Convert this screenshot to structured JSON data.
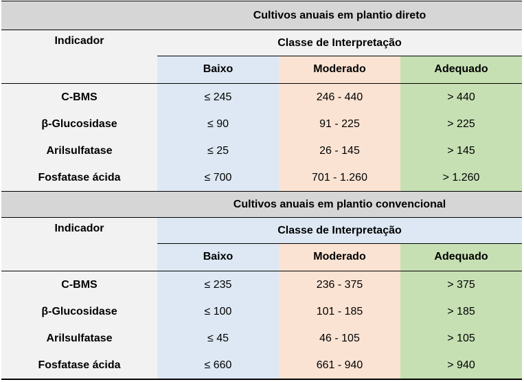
{
  "sections": [
    {
      "title": "Cultivos anuais em plantio direto",
      "indicator_header": "Indicador",
      "class_header": "Classe de Interpretação",
      "levels": [
        "Baixo",
        "Moderado",
        "Adequado"
      ],
      "rows": [
        {
          "indicator": "C-BMS",
          "values": [
            "≤ 245",
            "246 - 440",
            "> 440"
          ]
        },
        {
          "indicator": "β-Glucosidase",
          "values": [
            "≤ 90",
            "91 - 225",
            "> 225"
          ]
        },
        {
          "indicator": "Arilsulfatase",
          "values": [
            "≤ 25",
            "26 - 145",
            "> 145"
          ]
        },
        {
          "indicator": "Fosfatase ácida",
          "values": [
            "≤ 700",
            "701 - 1.260",
            "> 1.260"
          ]
        }
      ]
    },
    {
      "title": "Cultivos anuais em plantio convencional",
      "indicator_header": "Indicador",
      "class_header": "Classe de Interpretação",
      "levels": [
        "Baixo",
        "Moderado",
        "Adequado"
      ],
      "rows": [
        {
          "indicator": "C-BMS",
          "values": [
            "≤ 235",
            "236 - 375",
            "> 375"
          ]
        },
        {
          "indicator": "β-Glucosidase",
          "values": [
            "≤ 100",
            "101 - 185",
            "> 185"
          ]
        },
        {
          "indicator": "Arilsulfatase",
          "values": [
            "≤ 45",
            "46 - 105",
            "> 105"
          ]
        },
        {
          "indicator": "Fosfatase ácida",
          "values": [
            "≤ 660",
            "661 - 940",
            "> 940"
          ]
        }
      ]
    }
  ],
  "colors": {
    "baixo": "#dde8f4",
    "moderado": "#fbe3d3",
    "adequado": "#c6e0b4",
    "indicator_bg": "#f2f2f2",
    "section_title_bg": "#d6d6d6"
  }
}
